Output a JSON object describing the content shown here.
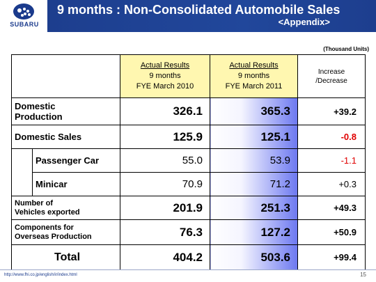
{
  "header": {
    "brand": "SUBARU",
    "title": "9 months : Non-Consolidated Automobile Sales",
    "subtitle": "<Appendix>"
  },
  "units": "(Thousand Units)",
  "columns": {
    "col1": {
      "line1": "Actual Results",
      "line2": "9 months",
      "line3": "FYE March 2010"
    },
    "col2": {
      "line1": "Actual Results",
      "line2": "9 months",
      "line3": "FYE March 2011"
    },
    "col3": {
      "line1": "Increase",
      "line2": "/Decrease"
    }
  },
  "rows": [
    {
      "label_line1": "Domestic",
      "label_line2": "Production",
      "v2010": "326.1",
      "v2011": "365.3",
      "change": "+39.2"
    },
    {
      "label": "Domestic Sales",
      "v2010": "125.9",
      "v2011": "125.1",
      "change": "-0.8"
    },
    {
      "label": "Passenger Car",
      "v2010": "55.0",
      "v2011": "53.9",
      "change": "-1.1"
    },
    {
      "label": "Minicar",
      "v2010": "70.9",
      "v2011": "71.2",
      "change": "+0.3"
    },
    {
      "label_line1": "Number of",
      "label_line2": "Vehicles exported",
      "v2010": "201.9",
      "v2011": "251.3",
      "change": "+49.3"
    },
    {
      "label_line1": "Components for",
      "label_line2": "Overseas Production",
      "v2010": "76.3",
      "v2011": "127.2",
      "change": "+50.9"
    },
    {
      "label": "Total",
      "v2010": "404.2",
      "v2011": "503.6",
      "change": "+99.4"
    }
  ],
  "footer": {
    "url": "http://www.fhi.co.jp/english/ir/index.html",
    "page": "15"
  },
  "colors": {
    "brand_blue": "#1d3e8e",
    "header_yellow": "#fff7b0",
    "negative_red": "#e00000"
  }
}
